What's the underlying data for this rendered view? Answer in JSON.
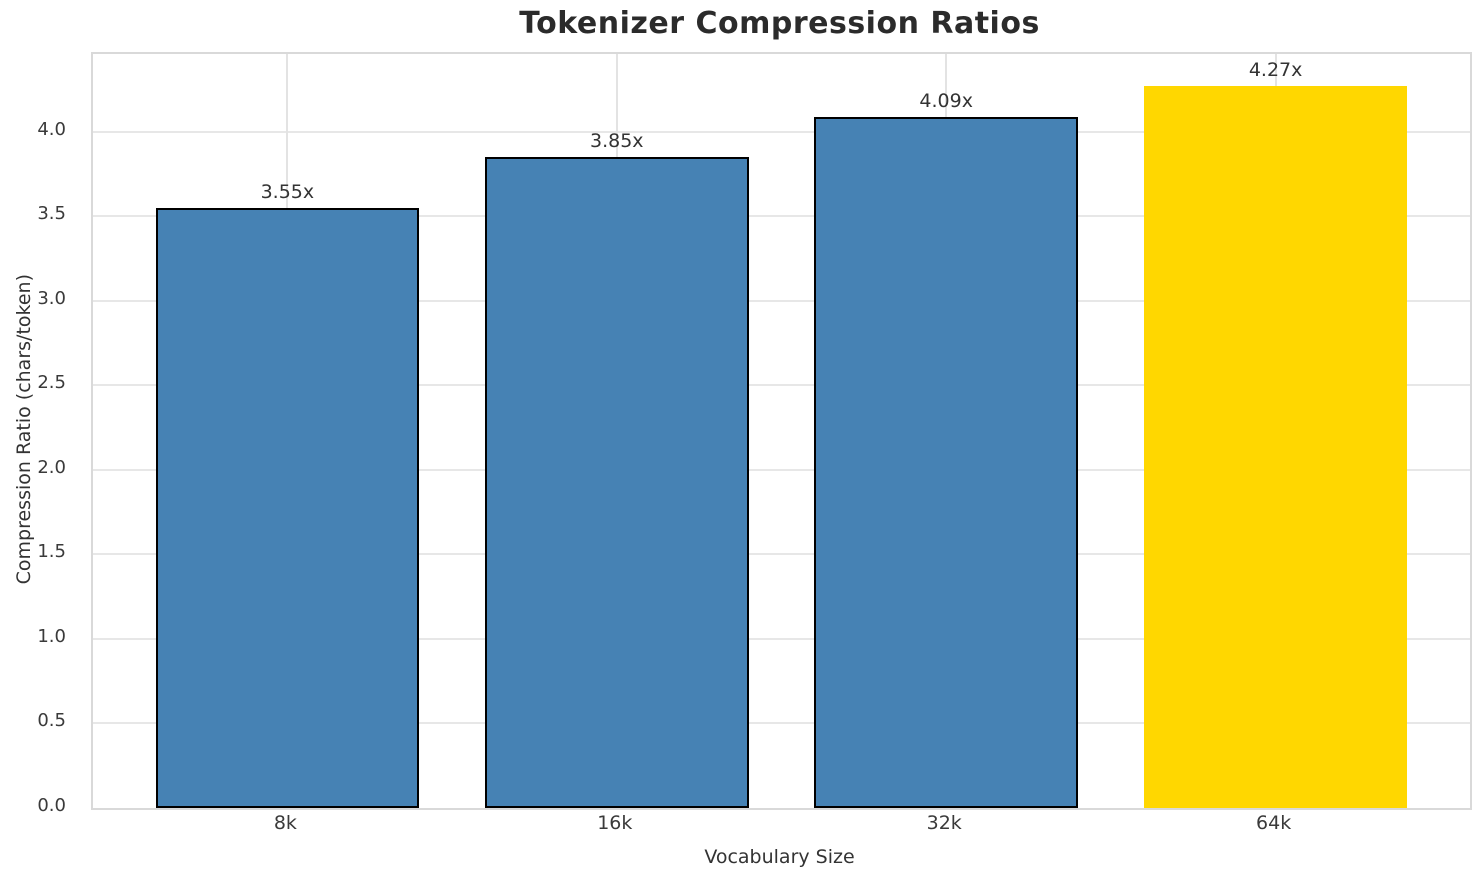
{
  "chart_data": {
    "type": "bar",
    "title": "Tokenizer Compression Ratios",
    "xlabel": "Vocabulary Size",
    "ylabel": "Compression Ratio (chars/token)",
    "categories": [
      "8k",
      "16k",
      "32k",
      "64k"
    ],
    "values": [
      3.55,
      3.85,
      4.09,
      4.27
    ],
    "bar_labels": [
      "3.55x",
      "3.85x",
      "4.09x",
      "4.27x"
    ],
    "bar_colors": [
      "#4682b4",
      "#4682b4",
      "#4682b4",
      "#ffd700"
    ],
    "bar_edge_colors": [
      "#000000",
      "#000000",
      "#000000",
      "#ffd700"
    ],
    "highlighted_category": "64k",
    "ylim": [
      0,
      4.46
    ],
    "xlim": [
      -0.59,
      3.59
    ],
    "bar_width": 0.8,
    "ytick_labels": [
      "0.0",
      "0.5",
      "1.0",
      "1.5",
      "2.0",
      "2.5",
      "3.0",
      "3.5",
      "4.0"
    ],
    "grid": "on",
    "legend": "none",
    "colors": {
      "bar_default": "#4682b4",
      "bar_highlight": "#ffd700",
      "bar_edge": "#000000",
      "grid_line": "#e7e7e7",
      "spine": "#d9d9d9",
      "tick_text": "#3a3a3a",
      "title_text": "#2b2b2b"
    }
  }
}
